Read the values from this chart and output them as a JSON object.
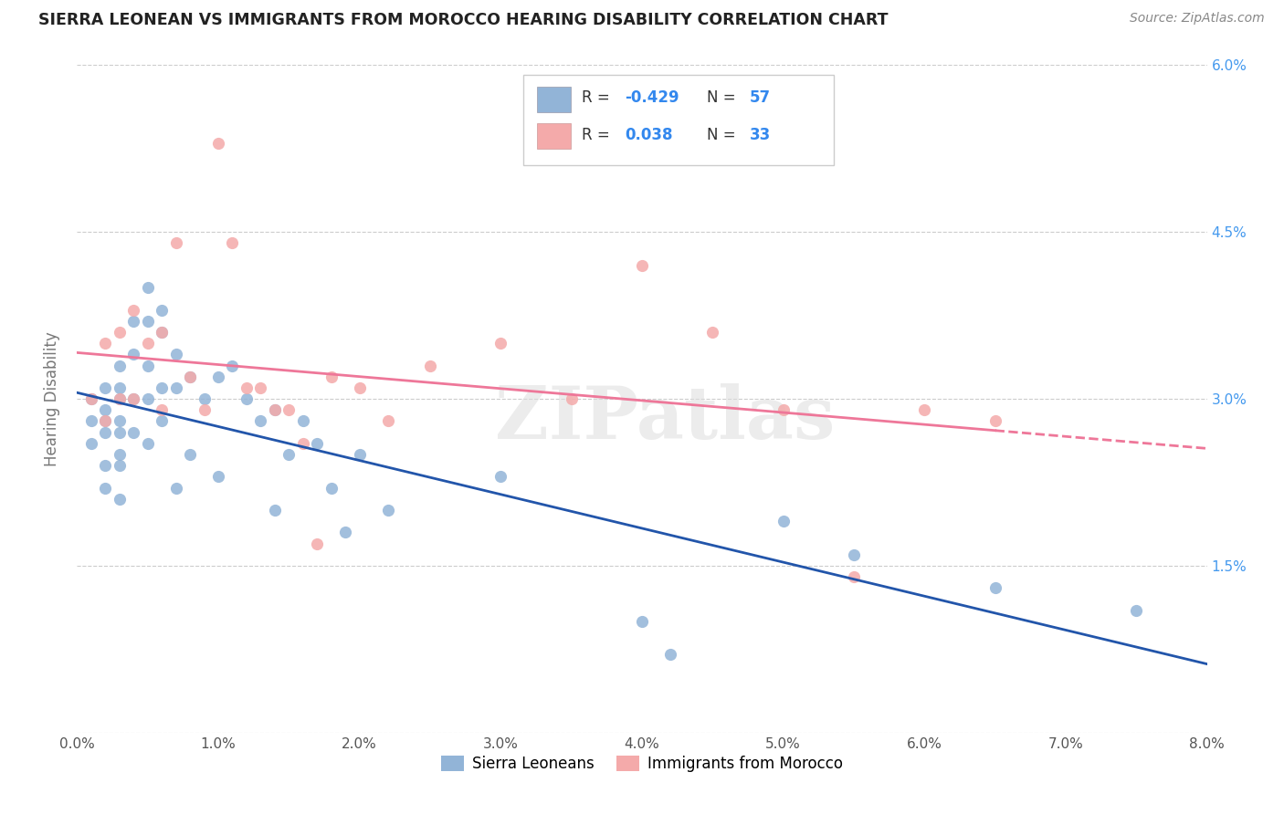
{
  "title": "SIERRA LEONEAN VS IMMIGRANTS FROM MOROCCO HEARING DISABILITY CORRELATION CHART",
  "source": "Source: ZipAtlas.com",
  "ylabel": "Hearing Disability",
  "x_min": 0.0,
  "x_max": 0.08,
  "y_min": 0.0,
  "y_max": 0.06,
  "x_ticks": [
    0.0,
    0.01,
    0.02,
    0.03,
    0.04,
    0.05,
    0.06,
    0.07,
    0.08
  ],
  "y_ticks": [
    0.0,
    0.015,
    0.03,
    0.045,
    0.06
  ],
  "x_tick_labels": [
    "0.0%",
    "1.0%",
    "2.0%",
    "3.0%",
    "4.0%",
    "5.0%",
    "6.0%",
    "7.0%",
    "8.0%"
  ],
  "y_tick_labels": [
    "",
    "1.5%",
    "3.0%",
    "4.5%",
    "6.0%"
  ],
  "legend_labels": [
    "Sierra Leoneans",
    "Immigrants from Morocco"
  ],
  "blue_color": "#92B4D7",
  "pink_color": "#F4AAAA",
  "blue_line_color": "#2255AA",
  "pink_line_color": "#EE7799",
  "watermark": "ZIPatlas",
  "sierra_x": [
    0.001,
    0.001,
    0.001,
    0.002,
    0.002,
    0.002,
    0.002,
    0.002,
    0.002,
    0.003,
    0.003,
    0.003,
    0.003,
    0.003,
    0.003,
    0.003,
    0.003,
    0.004,
    0.004,
    0.004,
    0.004,
    0.005,
    0.005,
    0.005,
    0.005,
    0.005,
    0.006,
    0.006,
    0.006,
    0.006,
    0.007,
    0.007,
    0.007,
    0.008,
    0.008,
    0.009,
    0.01,
    0.01,
    0.011,
    0.012,
    0.013,
    0.014,
    0.014,
    0.015,
    0.016,
    0.017,
    0.018,
    0.019,
    0.02,
    0.022,
    0.03,
    0.04,
    0.042,
    0.05,
    0.055,
    0.065,
    0.075
  ],
  "sierra_y": [
    0.03,
    0.028,
    0.026,
    0.031,
    0.029,
    0.028,
    0.027,
    0.024,
    0.022,
    0.033,
    0.031,
    0.03,
    0.028,
    0.027,
    0.025,
    0.024,
    0.021,
    0.037,
    0.034,
    0.03,
    0.027,
    0.04,
    0.037,
    0.033,
    0.03,
    0.026,
    0.038,
    0.036,
    0.031,
    0.028,
    0.034,
    0.031,
    0.022,
    0.032,
    0.025,
    0.03,
    0.032,
    0.023,
    0.033,
    0.03,
    0.028,
    0.029,
    0.02,
    0.025,
    0.028,
    0.026,
    0.022,
    0.018,
    0.025,
    0.02,
    0.023,
    0.01,
    0.007,
    0.019,
    0.016,
    0.013,
    0.011
  ],
  "morocco_x": [
    0.001,
    0.002,
    0.002,
    0.003,
    0.003,
    0.004,
    0.004,
    0.005,
    0.006,
    0.006,
    0.007,
    0.008,
    0.009,
    0.01,
    0.011,
    0.012,
    0.013,
    0.014,
    0.015,
    0.016,
    0.017,
    0.018,
    0.02,
    0.022,
    0.025,
    0.03,
    0.035,
    0.04,
    0.045,
    0.05,
    0.055,
    0.06,
    0.065
  ],
  "morocco_y": [
    0.03,
    0.035,
    0.028,
    0.036,
    0.03,
    0.038,
    0.03,
    0.035,
    0.036,
    0.029,
    0.044,
    0.032,
    0.029,
    0.053,
    0.044,
    0.031,
    0.031,
    0.029,
    0.029,
    0.026,
    0.017,
    0.032,
    0.031,
    0.028,
    0.033,
    0.035,
    0.03,
    0.042,
    0.036,
    0.029,
    0.014,
    0.029,
    0.028
  ]
}
